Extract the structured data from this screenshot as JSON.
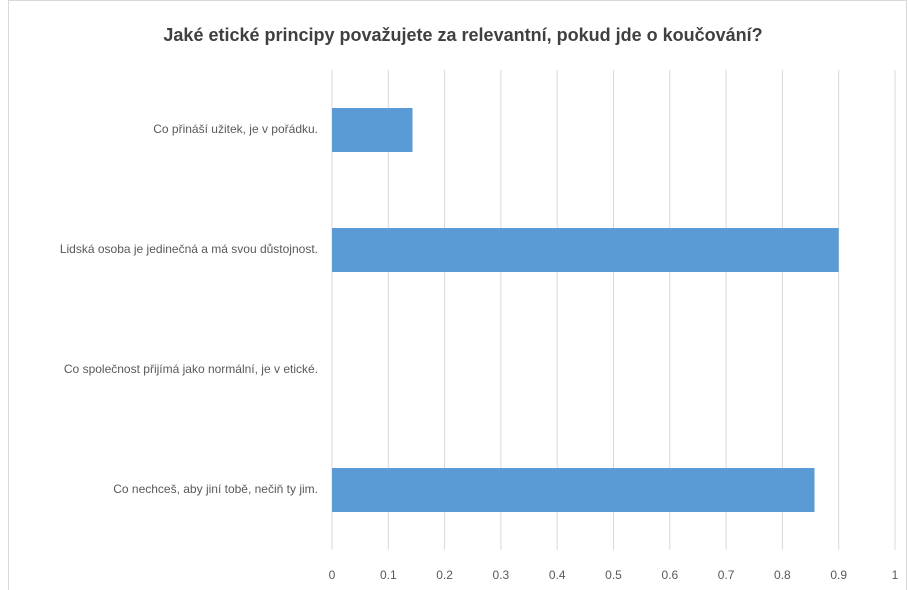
{
  "chart_data": {
    "type": "bar",
    "orientation": "horizontal",
    "title": "Jaké etické principy považujete za relevantní, pokud jde o koučování?",
    "categories": [
      "Co přináší užitek, je v pořádku.",
      "Lidská osoba je jedinečná a má svou důstojnost.",
      "Co společnost přijímá jako normální, je v etické.",
      "Co nechceš, aby jiní tobě, nečiň ty jim."
    ],
    "values": [
      0.143,
      0.9,
      0,
      0.857
    ],
    "color": "#5b9bd5",
    "xlim": [
      0,
      1
    ],
    "xticks": [
      0,
      0.1,
      0.2,
      0.3,
      0.4,
      0.5,
      0.6,
      0.7,
      0.8,
      0.9,
      1
    ],
    "grid": true
  }
}
